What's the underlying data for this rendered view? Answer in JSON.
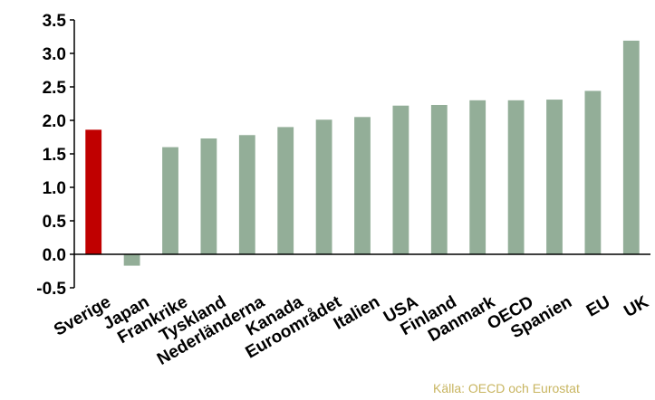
{
  "chart_data": {
    "type": "bar",
    "categories": [
      "Sverige",
      "Japan",
      "Frankrike",
      "Tyskland",
      "Nederländerna",
      "Kanada",
      "Euroområdet",
      "Italien",
      "USA",
      "Finland",
      "Danmark",
      "OECD",
      "Spanien",
      "EU",
      "UK"
    ],
    "values": [
      1.86,
      -0.17,
      1.6,
      1.73,
      1.78,
      1.9,
      2.01,
      2.05,
      2.22,
      2.23,
      2.3,
      2.3,
      2.31,
      2.44,
      3.19
    ],
    "highlight": "Sverige",
    "ylim": [
      -0.5,
      3.5
    ],
    "yticks": [
      "-0.5",
      "0.0",
      "0.5",
      "1.0",
      "1.5",
      "2.0",
      "2.5",
      "3.0",
      "3.5"
    ],
    "grid": false,
    "colors": {
      "bar": "#93ae98",
      "highlight": "#c00000",
      "axis": "#000000"
    }
  },
  "source": "Källa: OECD och Eurostat"
}
